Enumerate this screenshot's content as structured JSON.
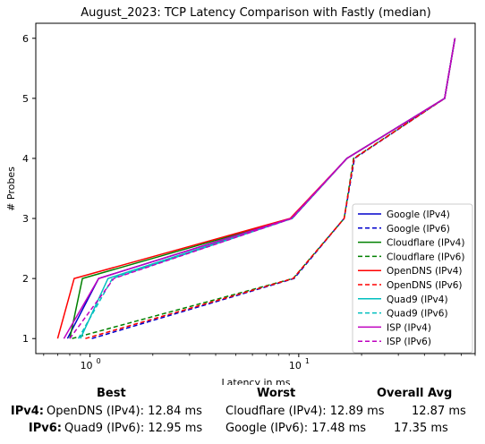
{
  "chart_data": {
    "type": "line",
    "title": "August_2023: TCP Latency Comparison with Fastly (median)",
    "xlabel": "Latency in ms",
    "ylabel": "# Probes",
    "xscale": "log",
    "xlim": [
      0.55,
      70
    ],
    "ylim": [
      0.75,
      6.25
    ],
    "xticks": [
      {
        "value": 1,
        "label": "10",
        "exp": "0"
      },
      {
        "value": 10,
        "label": "10",
        "exp": "1"
      }
    ],
    "yticks": [
      1,
      2,
      3,
      4,
      5,
      6
    ],
    "grid": false,
    "legend_position": "lower-right",
    "series": [
      {
        "name": "Google (IPv4)",
        "color": "#0000cc",
        "dash": "solid",
        "x": [
          0.78,
          1.1,
          9.2,
          17,
          50,
          56
        ],
        "y": [
          1,
          2,
          3,
          4,
          5,
          6
        ]
      },
      {
        "name": "Google (IPv6)",
        "color": "#0000cc",
        "dash": "dashed",
        "x": [
          1.02,
          9.5,
          16.5,
          18.5,
          50,
          56
        ],
        "y": [
          1,
          2,
          3,
          4,
          5,
          6
        ]
      },
      {
        "name": "Cloudflare (IPv4)",
        "color": "#008000",
        "dash": "solid",
        "x": [
          0.8,
          0.92,
          9.3,
          17,
          50,
          56
        ],
        "y": [
          1,
          2,
          3,
          4,
          5,
          6
        ]
      },
      {
        "name": "Cloudflare (IPv6)",
        "color": "#008000",
        "dash": "dashed",
        "x": [
          0.82,
          9.4,
          16.5,
          18.3,
          50,
          56
        ],
        "y": [
          1,
          2,
          3,
          4,
          5,
          6
        ]
      },
      {
        "name": "OpenDNS (IPv4)",
        "color": "#ff0000",
        "dash": "solid",
        "x": [
          0.7,
          0.84,
          9.1,
          17,
          50,
          56
        ],
        "y": [
          1,
          2,
          3,
          4,
          5,
          6
        ]
      },
      {
        "name": "OpenDNS (IPv6)",
        "color": "#ff0000",
        "dash": "dashed",
        "x": [
          0.95,
          9.4,
          16.5,
          18.4,
          50,
          56
        ],
        "y": [
          1,
          2,
          3,
          4,
          5,
          6
        ]
      },
      {
        "name": "Quad9 (IPv4)",
        "color": "#00bfbf",
        "dash": "solid",
        "x": [
          0.9,
          1.22,
          9.3,
          17,
          50,
          56
        ],
        "y": [
          1,
          2,
          3,
          4,
          5,
          6
        ]
      },
      {
        "name": "Quad9 (IPv6)",
        "color": "#00bfbf",
        "dash": "dashed",
        "x": [
          0.88,
          1.28,
          9.3,
          17,
          50,
          56
        ],
        "y": [
          1,
          2,
          3,
          4,
          5,
          6
        ]
      },
      {
        "name": "ISP (IPv4)",
        "color": "#bf00bf",
        "dash": "solid",
        "x": [
          0.75,
          1.1,
          9.2,
          17,
          50,
          56
        ],
        "y": [
          1,
          2,
          3,
          4,
          5,
          6
        ]
      },
      {
        "name": "ISP (IPv6)",
        "color": "#bf00bf",
        "dash": "dashed",
        "x": [
          0.8,
          1.3,
          9.3,
          17,
          50,
          56
        ],
        "y": [
          1,
          2,
          3,
          4,
          5,
          6
        ]
      }
    ]
  },
  "summary": {
    "headers": {
      "best": "Best",
      "worst": "Worst",
      "overall": "Overall Avg"
    },
    "rows": [
      {
        "label": "IPv4:",
        "best": "OpenDNS (IPv4): 12.84 ms",
        "worst": "Cloudflare (IPv4): 12.89 ms",
        "overall": "12.87 ms"
      },
      {
        "label": "IPv6:",
        "best": "Quad9 (IPv6): 12.95 ms",
        "worst": "Google (IPv6): 17.48 ms",
        "overall": "17.35 ms"
      }
    ]
  }
}
